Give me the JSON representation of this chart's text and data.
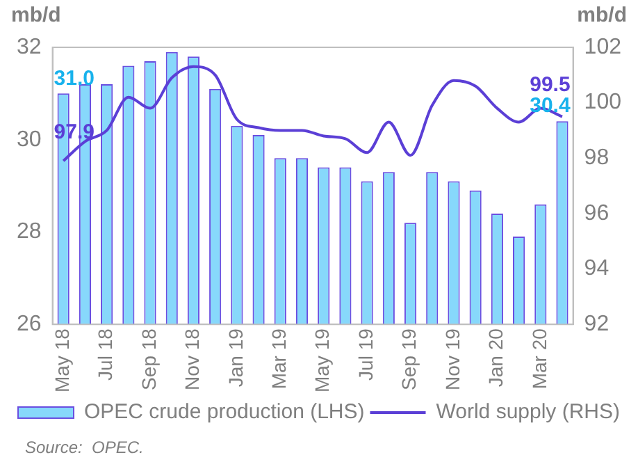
{
  "chart_data": {
    "type": "bar",
    "categories": [
      "May 18",
      null,
      "Jul 18",
      null,
      "Sep 18",
      null,
      "Nov 18",
      null,
      "Jan 19",
      null,
      "Mar 19",
      null,
      "May 19",
      null,
      "Jul 19",
      null,
      "Sep 19",
      null,
      "Nov 19",
      null,
      "Jan 20",
      null,
      "Mar 20",
      null
    ],
    "series": [
      {
        "name": "OPEC crude production (LHS)",
        "color": "#87d8fb",
        "values": [
          31.0,
          31.2,
          31.2,
          31.6,
          31.7,
          31.9,
          31.8,
          31.1,
          30.3,
          30.1,
          29.6,
          29.6,
          29.4,
          29.4,
          29.1,
          29.3,
          28.2,
          29.3,
          29.1,
          28.9,
          28.4,
          27.9,
          28.6,
          30.4
        ],
        "value_labels": [
          "31.0",
          null,
          null,
          null,
          null,
          null,
          null,
          null,
          null,
          null,
          null,
          null,
          null,
          null,
          null,
          null,
          null,
          null,
          null,
          null,
          null,
          null,
          null,
          "30.4"
        ]
      },
      {
        "name": "World supply (RHS)",
        "type": "line",
        "axis": "y2",
        "color": "#5b3fd6",
        "values": [
          97.9,
          98.6,
          99.0,
          100.2,
          99.8,
          100.9,
          101.3,
          101.0,
          99.4,
          99.1,
          99.0,
          99.0,
          98.8,
          98.7,
          98.2,
          99.3,
          98.1,
          99.9,
          100.8,
          100.6,
          99.8,
          99.3,
          99.8,
          99.5
        ],
        "value_labels": [
          "97.9",
          null,
          null,
          null,
          null,
          null,
          null,
          null,
          null,
          null,
          null,
          null,
          null,
          null,
          null,
          null,
          null,
          null,
          null,
          null,
          null,
          null,
          null,
          "99.5"
        ]
      }
    ],
    "ylabel": "mb/d",
    "y2label": "mb/d",
    "ylim": [
      26,
      32
    ],
    "yticks": [
      26,
      28,
      30,
      32
    ],
    "y2lim": [
      92,
      102
    ],
    "y2ticks": [
      92,
      94,
      96,
      98,
      100,
      102
    ],
    "grid": false,
    "legend": "bottom",
    "marker": "none",
    "line_style": "solid",
    "annotations": [
      "Source:  OPEC."
    ]
  }
}
